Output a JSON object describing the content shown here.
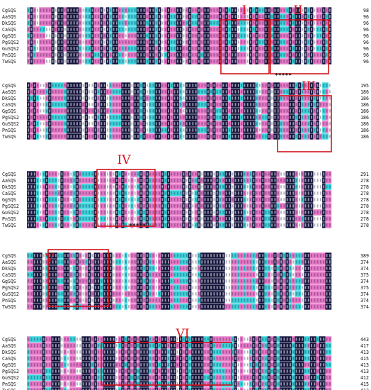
{
  "figure": {
    "colors": {
      "identical": "#14143c",
      "high": "#e878c8",
      "medium": "#3cd4dc",
      "low": "#ffffff",
      "motif_box": "#d4141c"
    },
    "blocks": [
      {
        "names": [
          "CgSQS",
          "AaSQS",
          "DkSQS",
          "CaSQS",
          "GgSQS",
          "PgSQS2",
          "GuSQS2",
          "PnSQS",
          "TwSQS"
        ],
        "ends": [
          "98",
          "96",
          "96",
          "96",
          "96",
          "96",
          "96",
          "96",
          "96"
        ],
        "motifs": [
          {
            "label": "I"
          },
          {
            "label": "II"
          }
        ],
        "stars": "*****"
      },
      {
        "names": [
          "CgSQS",
          "AaSQS",
          "DkSQS",
          "CaSQS",
          "GgSQS",
          "PgSQS2",
          "GuSQS2",
          "PnSQS",
          "TwSQS"
        ],
        "ends": [
          "195",
          "186",
          "186",
          "186",
          "186",
          "186",
          "186",
          "186",
          "186"
        ],
        "motifs": [
          {
            "label": "III"
          }
        ],
        "stars": ""
      },
      {
        "names": [
          "CgSQS",
          "AaSQS",
          "DkSQS",
          "CaSQS",
          "GgSQS",
          "PgSQS2",
          "GuSQS2",
          "PnSQS",
          "TwSQS"
        ],
        "ends": [
          "291",
          "278",
          "278",
          "278",
          "278",
          "278",
          "278",
          "278",
          "278"
        ],
        "motifs": [
          {
            "label": "IV"
          }
        ],
        "stars": "*****"
      },
      {
        "names": [
          "CgSQS",
          "AaSQS",
          "DkSQS",
          "CaSQS",
          "GgSQS",
          "PgSQS2",
          "GuSQS2",
          "PnSQS",
          "TwSQS"
        ],
        "ends": [
          "389",
          "374",
          "374",
          "375",
          "374",
          "375",
          "374",
          "374",
          "374"
        ],
        "motifs": [
          {
            "label": "V"
          }
        ],
        "stars": ""
      },
      {
        "names": [
          "CgSQS",
          "AaSQS",
          "DkSQS",
          "CaSQS",
          "GgSQS",
          "PgSQS2",
          "GuSQS2",
          "PnSQS",
          "TwSQS"
        ],
        "ends": [
          "443",
          "417",
          "413",
          "415",
          "413",
          "413",
          "412",
          "415",
          "413"
        ],
        "motifs": [
          {
            "label": "VI"
          }
        ],
        "stars": ""
      }
    ]
  }
}
